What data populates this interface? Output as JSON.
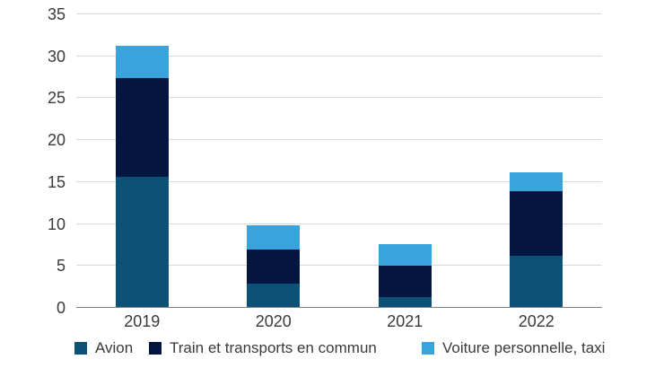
{
  "chart_data": {
    "type": "bar",
    "stacked": true,
    "title": "",
    "categories": [
      "2019",
      "2020",
      "2021",
      "2022"
    ],
    "series": [
      {
        "name": "Avion",
        "color": "#0B5276",
        "values": [
          15.5,
          2.8,
          1.2,
          6.1
        ]
      },
      {
        "name": "Train et transports en commun",
        "color": "#041542",
        "values": [
          11.8,
          4.1,
          3.7,
          7.7
        ]
      },
      {
        "name": "Voiture personnelle, taxi",
        "color": "#39A3DC",
        "values": [
          3.9,
          2.8,
          2.6,
          2.3
        ]
      }
    ],
    "stack_totals": [
      31.2,
      9.7,
      7.5,
      16.1
    ],
    "xlabel": "",
    "ylabel": "",
    "ylim": [
      0,
      35
    ],
    "yticks": [
      0,
      5,
      10,
      15,
      20,
      25,
      30,
      35
    ],
    "grid": true,
    "legend_position": "bottom",
    "colors": {
      "gridline": "#D8D8D8",
      "axis_line": "#7F7F7F",
      "text": "#3A3A3A",
      "background": "#FFFFFF"
    }
  }
}
